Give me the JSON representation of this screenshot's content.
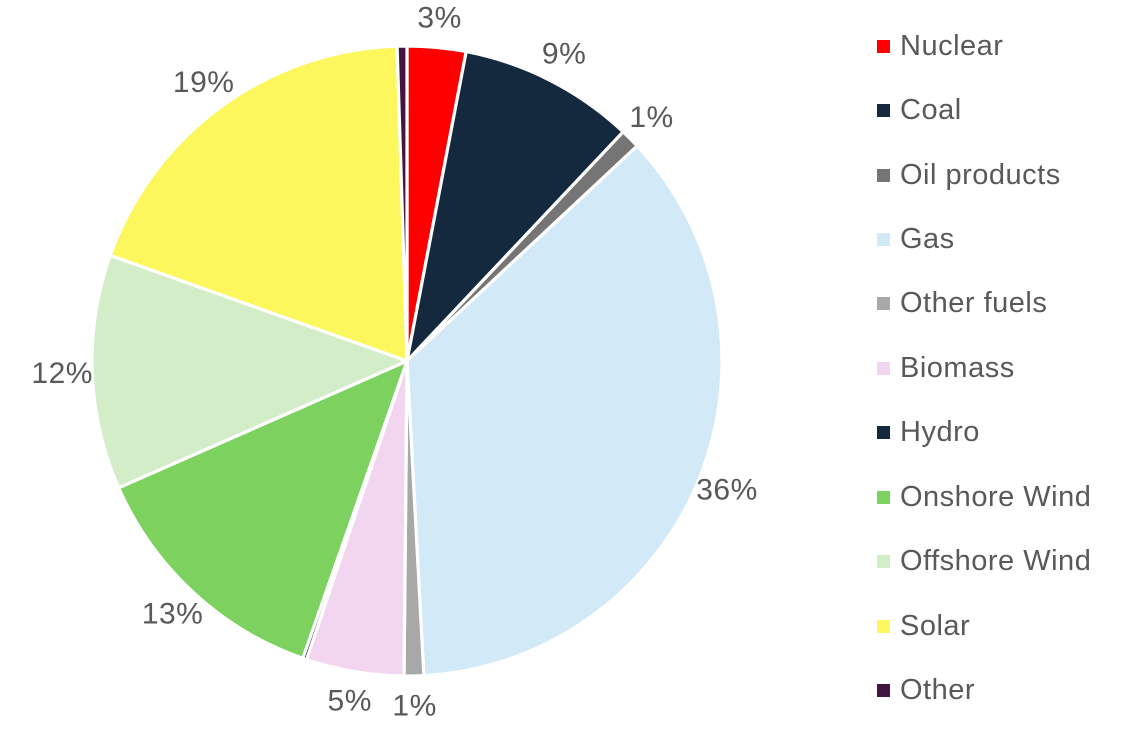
{
  "background": "#FFFFFF",
  "text_color": "#595959",
  "chart_data": {
    "type": "pie",
    "title": "",
    "legend_position": "right",
    "direction": "clockwise",
    "start_angle_deg": 0,
    "separator_color": "#FFFFFF",
    "label_color": "#595959",
    "categories": [
      "Nuclear",
      "Coal",
      "Oil products",
      "Gas",
      "Other fuels",
      "Biomass",
      "Hydro",
      "Onshore Wind",
      "Offshore Wind",
      "Solar",
      "Other"
    ],
    "series": [
      {
        "slug": "nuclear",
        "name": "Nuclear",
        "value": 3,
        "label": "3%",
        "color": "#FE0000"
      },
      {
        "slug": "coal",
        "name": "Coal",
        "value": 9,
        "label": "9%",
        "color": "#14293E"
      },
      {
        "slug": "oil-products",
        "name": "Oil products",
        "value": 1,
        "label": "1%",
        "color": "#757575"
      },
      {
        "slug": "gas",
        "name": "Gas",
        "value": 36,
        "label": "36%",
        "color": "#D2EAF7"
      },
      {
        "slug": "other-fuels",
        "name": "Other fuels",
        "value": 1,
        "label": "1%",
        "color": "#A8A8A8"
      },
      {
        "slug": "biomass",
        "name": "Biomass",
        "value": 5,
        "label": "5%",
        "color": "#F2D6F0"
      },
      {
        "slug": "hydro",
        "name": "Hydro",
        "value": 0.2,
        "label": "",
        "color": "#14293E"
      },
      {
        "slug": "onshore-wind",
        "name": "Onshore Wind",
        "value": 13,
        "label": "13%",
        "color": "#7CD15F"
      },
      {
        "slug": "offshore-wind",
        "name": "Offshore Wind",
        "value": 12,
        "label": "12%",
        "color": "#D3EDC9"
      },
      {
        "slug": "solar",
        "name": "Solar",
        "value": 19,
        "label": "19%",
        "color": "#FBF75C"
      },
      {
        "slug": "other",
        "name": "Other",
        "value": 0.5,
        "label": "",
        "color": "#431641"
      }
    ]
  }
}
